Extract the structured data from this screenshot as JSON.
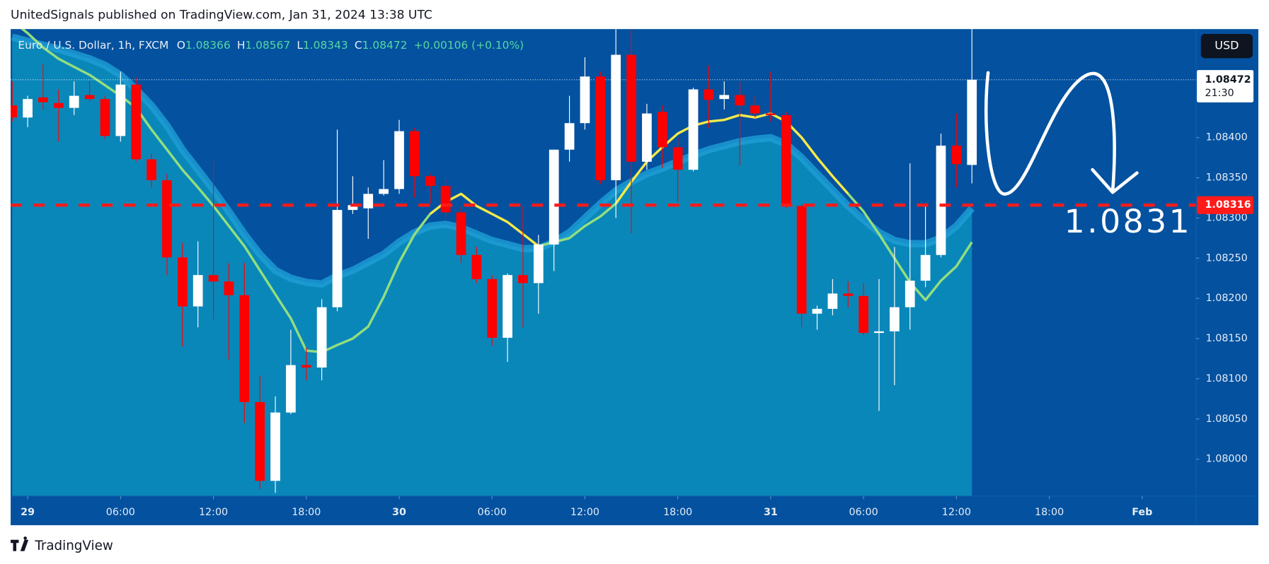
{
  "header": "UnitedSignals published on TradingView.com, Jan 31, 2024 13:38 UTC",
  "footer": "TradingView",
  "chart_data": {
    "type": "candlestick",
    "legend": {
      "symbol": "Euro / U.S. Dollar, 1h, FXCM",
      "letters": [
        "O",
        "H",
        "L",
        "C"
      ],
      "open": 1.08366,
      "high": 1.08567,
      "low": 1.08343,
      "close": 1.08472,
      "change": "+0.00106 (+0.10%)"
    },
    "currency": "USD",
    "up_color": "#ffffff",
    "down_color": "#ff0000",
    "open": [
      1.0844,
      1.08425,
      1.0845,
      1.08443,
      1.08437,
      1.08453,
      1.08448,
      1.08402,
      1.08466,
      1.08373,
      1.08347,
      1.08251,
      1.0819,
      1.08229,
      1.08221,
      1.08204,
      1.08071,
      1.07973,
      1.08058,
      1.08117,
      1.08114,
      1.08189,
      1.0831,
      1.08312,
      1.0833,
      1.08336,
      1.08408,
      1.08352,
      1.0834,
      1.08307,
      1.08254,
      1.08224,
      1.08151,
      1.08229,
      1.08219,
      1.08267,
      1.08385,
      1.08418,
      1.08476,
      1.08347,
      1.08503,
      1.0837,
      1.08432,
      1.08388,
      1.0836,
      1.0846,
      1.08448,
      1.08453,
      1.0844,
      1.0843,
      1.08428,
      1.08315,
      1.08181,
      1.08187,
      1.08206,
      1.08203,
      1.08157,
      1.08159,
      1.08189,
      1.08222,
      1.08254,
      1.0839,
      1.08366
    ],
    "high": [
      1.0847,
      1.08452,
      1.08492,
      1.0846,
      1.0847,
      1.0847,
      1.08452,
      1.08482,
      1.08475,
      1.0838,
      1.08355,
      1.08269,
      1.08271,
      1.08371,
      1.08244,
      1.08244,
      1.08104,
      1.08078,
      1.08161,
      1.08139,
      1.08199,
      1.0841,
      1.08352,
      1.08338,
      1.08372,
      1.08422,
      1.08412,
      1.08355,
      1.08348,
      1.08314,
      1.08264,
      1.08229,
      1.08231,
      1.08314,
      1.08279,
      1.08385,
      1.08452,
      1.085,
      1.08482,
      1.08535,
      1.08535,
      1.08442,
      1.0844,
      1.084,
      1.08462,
      1.0849,
      1.0847,
      1.0847,
      1.08452,
      1.08482,
      1.08432,
      1.08318,
      1.08191,
      1.08224,
      1.08221,
      1.08219,
      1.08224,
      1.08264,
      1.08368,
      1.08314,
      1.08405,
      1.0843,
      1.08567
    ],
    "low": [
      1.0842,
      1.08413,
      1.08435,
      1.08395,
      1.08428,
      1.08445,
      1.08398,
      1.08395,
      1.0837,
      1.08338,
      1.08229,
      1.0814,
      1.08164,
      1.08174,
      1.08124,
      1.08045,
      1.07963,
      1.07958,
      1.08056,
      1.08098,
      1.08098,
      1.08184,
      1.08305,
      1.08274,
      1.08328,
      1.0833,
      1.08325,
      1.08318,
      1.083,
      1.08244,
      1.08219,
      1.08141,
      1.08121,
      1.08164,
      1.08181,
      1.08234,
      1.0837,
      1.0841,
      1.08342,
      1.083,
      1.08281,
      1.0836,
      1.08362,
      1.0832,
      1.08358,
      1.08412,
      1.08435,
      1.08365,
      1.08425,
      1.0842,
      1.08312,
      1.08164,
      1.08161,
      1.08179,
      1.08189,
      1.08154,
      1.0806,
      1.08092,
      1.08161,
      1.08214,
      1.08251,
      1.08338,
      1.08343
    ],
    "close": [
      1.08425,
      1.08448,
      1.08444,
      1.08437,
      1.08452,
      1.08448,
      1.08402,
      1.08466,
      1.08373,
      1.08347,
      1.08251,
      1.0819,
      1.08229,
      1.08221,
      1.08204,
      1.08071,
      1.07973,
      1.08058,
      1.08117,
      1.08114,
      1.08189,
      1.0831,
      1.08316,
      1.0833,
      1.08336,
      1.08408,
      1.08352,
      1.0834,
      1.08307,
      1.08254,
      1.08224,
      1.08151,
      1.08229,
      1.08219,
      1.08267,
      1.08385,
      1.08418,
      1.08476,
      1.08347,
      1.08503,
      1.0837,
      1.0843,
      1.08388,
      1.0836,
      1.0846,
      1.08447,
      1.08453,
      1.0844,
      1.0843,
      1.08428,
      1.08315,
      1.08181,
      1.08187,
      1.08206,
      1.08203,
      1.08157,
      1.08159,
      1.08189,
      1.08222,
      1.08254,
      1.0839,
      1.08367,
      1.08472
    ],
    "overlays": [
      {
        "kind": "area",
        "color": "#0a87b9",
        "edge": "#1e9fd6",
        "values": [
          1.08525,
          1.0852,
          1.08515,
          1.0851,
          1.08504,
          1.08498,
          1.0849,
          1.08478,
          1.0846,
          1.0844,
          1.08415,
          1.08385,
          1.0836,
          1.08335,
          1.08308,
          1.0828,
          1.08255,
          1.08235,
          1.08225,
          1.0822,
          1.08218,
          1.08228,
          1.08235,
          1.08245,
          1.08255,
          1.0827,
          1.08282,
          1.0829,
          1.08292,
          1.08288,
          1.0828,
          1.08272,
          1.08267,
          1.08262,
          1.08262,
          1.0827,
          1.08282,
          1.083,
          1.08318,
          1.08334,
          1.08345,
          1.08355,
          1.08362,
          1.0837,
          1.08378,
          1.08385,
          1.0839,
          1.08395,
          1.08398,
          1.084,
          1.08392,
          1.08375,
          1.08355,
          1.08335,
          1.08315,
          1.08298,
          1.08282,
          1.08272,
          1.08268,
          1.08268,
          1.08275,
          1.0829,
          1.08312
        ]
      },
      {
        "kind": "line",
        "color": "#93de7e",
        "values": [
          1.08545,
          1.0853,
          1.08512,
          1.08498,
          1.08488,
          1.08478,
          1.08465,
          1.08452,
          1.08437,
          1.0841,
          1.08385,
          1.0836,
          1.08338,
          1.08315,
          1.0829,
          1.08265,
          1.08235,
          1.08205,
          1.08175,
          1.08135,
          1.08133,
          1.08142,
          1.0815,
          1.08165,
          1.08202,
          1.08245,
          1.0828,
          1.08305,
          null,
          null,
          null,
          null,
          null,
          null,
          1.08265,
          1.0827,
          1.08275,
          1.0829,
          1.08302,
          1.08318,
          null,
          null,
          null,
          null,
          null,
          null,
          null,
          null,
          null,
          null,
          null,
          null,
          null,
          null,
          1.0833,
          1.08308,
          1.0828,
          1.0825,
          1.0822,
          1.08198,
          1.08222,
          1.0824,
          1.0827
        ]
      },
      {
        "kind": "line",
        "color": "#f5e94a",
        "values": [
          null,
          null,
          null,
          null,
          null,
          null,
          null,
          null,
          null,
          null,
          null,
          null,
          null,
          null,
          null,
          null,
          null,
          null,
          null,
          null,
          null,
          null,
          null,
          null,
          null,
          null,
          null,
          1.08305,
          1.0832,
          1.0833,
          1.08315,
          1.08305,
          1.08295,
          1.0828,
          1.08265,
          null,
          null,
          null,
          null,
          1.08318,
          1.08345,
          1.0837,
          1.08388,
          1.08405,
          1.08415,
          1.0842,
          1.08422,
          1.08428,
          1.08425,
          1.0843,
          1.0842,
          1.084,
          1.08375,
          1.08352,
          1.0833,
          null,
          null,
          null,
          null,
          null,
          null,
          null,
          null
        ]
      }
    ],
    "price_line": {
      "value": 1.08316,
      "label": "1.08316",
      "color": "#ff1a1a"
    },
    "last_price": {
      "value": 1.08472,
      "label": "1.08472",
      "countdown": "21:30"
    },
    "annotation": "1.0831",
    "ylim": [
      1.07954,
      1.08535
    ],
    "yticks": [
      {
        "value": 1.08,
        "label": "1.08000"
      },
      {
        "value": 1.0805,
        "label": "1.08050"
      },
      {
        "value": 1.081,
        "label": "1.08100"
      },
      {
        "value": 1.0815,
        "label": "1.08150"
      },
      {
        "value": 1.082,
        "label": "1.08200"
      },
      {
        "value": 1.0825,
        "label": "1.08250"
      },
      {
        "value": 1.083,
        "label": "1.08300"
      },
      {
        "value": 1.0835,
        "label": "1.08350"
      },
      {
        "value": 1.084,
        "label": "1.08400"
      }
    ],
    "xlim": [
      -0.1,
      76.48
    ],
    "xticks": [
      {
        "value": 1,
        "label": "29"
      },
      {
        "value": 7,
        "label": "06:00"
      },
      {
        "value": 13,
        "label": "12:00"
      },
      {
        "value": 19,
        "label": "18:00"
      },
      {
        "value": 25,
        "label": "30"
      },
      {
        "value": 31,
        "label": "06:00"
      },
      {
        "value": 37,
        "label": "12:00"
      },
      {
        "value": 43,
        "label": "18:00"
      },
      {
        "value": 49,
        "label": "31"
      },
      {
        "value": 55,
        "label": "06:00"
      },
      {
        "value": 61,
        "label": "12:00"
      },
      {
        "value": 67,
        "label": "18:00"
      },
      {
        "value": 73,
        "label": "Feb"
      }
    ]
  }
}
